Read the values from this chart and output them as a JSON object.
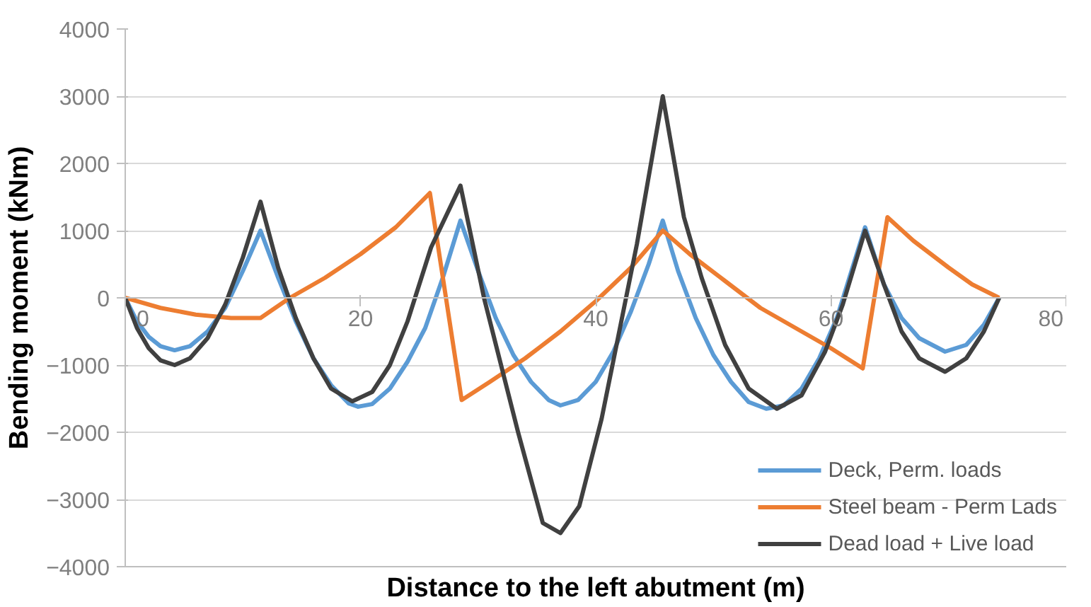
{
  "chart_data": {
    "type": "line",
    "xlabel": "Distance to the left abutment (m)",
    "ylabel": "Bending moment (kNm)",
    "xlim": [
      0,
      80
    ],
    "ylim": [
      -4000,
      4000
    ],
    "xticks": [
      0,
      20,
      40,
      60,
      80
    ],
    "yticks": [
      -4000,
      -3000,
      -2000,
      -1000,
      0,
      1000,
      2000,
      3000,
      4000
    ],
    "grid": "y",
    "legend": "bottom right",
    "marker": "none",
    "line_style": "solid",
    "series": [
      {
        "name": "Deck, Perm. loads",
        "color": "#5b9bd5",
        "x": [
          0,
          1,
          2,
          3,
          4.2,
          5.5,
          7,
          8.5,
          10,
          11.5,
          13,
          14.5,
          16,
          17.5,
          19,
          19.8,
          21,
          22.5,
          24,
          25.5,
          27,
          28.5,
          30,
          31.5,
          33,
          34.5,
          36,
          37,
          38.5,
          40,
          41.5,
          43,
          44.5,
          45.7,
          47,
          48.5,
          50,
          51.5,
          53,
          54.5,
          56,
          57.5,
          59,
          60.5,
          62.9,
          64.5,
          66,
          67.5,
          69.7,
          71.5,
          73,
          74.3
        ],
        "values": [
          0,
          -350,
          -580,
          -720,
          -780,
          -720,
          -500,
          -150,
          400,
          1000,
          300,
          -350,
          -900,
          -1300,
          -1570,
          -1620,
          -1580,
          -1350,
          -950,
          -450,
          300,
          1150,
          400,
          -300,
          -850,
          -1250,
          -1520,
          -1600,
          -1520,
          -1250,
          -800,
          -200,
          500,
          1150,
          400,
          -300,
          -850,
          -1250,
          -1550,
          -1650,
          -1600,
          -1350,
          -900,
          -300,
          1050,
          200,
          -300,
          -600,
          -800,
          -700,
          -400,
          0
        ]
      },
      {
        "name": "Steel beam - Perm Lads",
        "color": "#ed7d31",
        "x": [
          0,
          3,
          6,
          9,
          11.5,
          14,
          17,
          20,
          23,
          25.9,
          28.6,
          31,
          34,
          37,
          40,
          43,
          45.7,
          48,
          51,
          54,
          57,
          60,
          62.7,
          64.8,
          67,
          70,
          72,
          74.3
        ],
        "values": [
          0,
          -150,
          -250,
          -300,
          -300,
          0,
          300,
          650,
          1050,
          1560,
          -1520,
          -1250,
          -900,
          -500,
          -50,
          450,
          1000,
          650,
          250,
          -150,
          -450,
          -750,
          -1050,
          1200,
          850,
          450,
          200,
          0
        ]
      },
      {
        "name": "Dead load + Live load",
        "color": "#404040",
        "x": [
          0,
          1,
          2,
          3,
          4.2,
          5.5,
          7,
          8.5,
          10,
          11.5,
          13,
          14.5,
          16,
          17.5,
          19.3,
          21,
          22.5,
          24,
          26,
          28.5,
          30.5,
          33.4,
          35.5,
          37,
          38.6,
          40.5,
          42,
          43.5,
          45.7,
          47.5,
          49,
          51,
          53,
          55.4,
          57.5,
          59.5,
          61,
          62.9,
          64.5,
          66,
          67.5,
          69.7,
          71.5,
          73,
          74.3
        ],
        "values": [
          0,
          -450,
          -750,
          -930,
          -1000,
          -900,
          -600,
          -100,
          600,
          1430,
          450,
          -300,
          -900,
          -1350,
          -1540,
          -1400,
          -1000,
          -350,
          750,
          1670,
          0,
          -2000,
          -3350,
          -3500,
          -3100,
          -1800,
          -500,
          800,
          3000,
          1200,
          300,
          -700,
          -1350,
          -1650,
          -1450,
          -800,
          -100,
          1000,
          200,
          -500,
          -900,
          -1100,
          -900,
          -500,
          0
        ]
      }
    ]
  }
}
